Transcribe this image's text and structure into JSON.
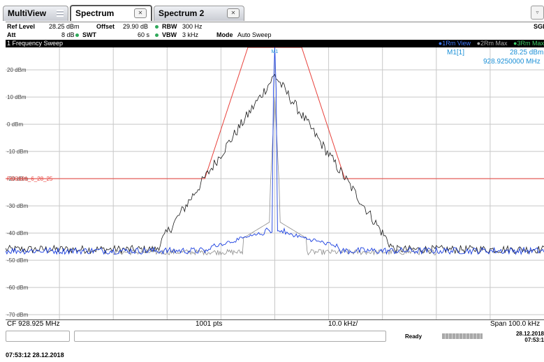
{
  "tabs": [
    {
      "label": "MultiView"
    },
    {
      "label": "Spectrum"
    },
    {
      "label": "Spectrum 2"
    }
  ],
  "sgl_label": "SGL",
  "settings": {
    "ref_level_label": "Ref Level",
    "ref_level_value": "28.25 dBm",
    "offset_label": "Offset",
    "offset_value": "29.90 dB",
    "rbw_label": "RBW",
    "rbw_value": "300 Hz",
    "att_label": "Att",
    "att_value": "8 dB",
    "swt_label": "SWT",
    "swt_value": "60 s",
    "vbw_label": "VBW",
    "vbw_value": "3 kHz",
    "mode_label": "Mode",
    "mode_value": "Auto Sweep"
  },
  "diagram": {
    "title": "1 Frequency Sweep",
    "traces": [
      "1Rm View",
      "2Rm Max",
      "3Rm Max"
    ],
    "trace_colors": [
      "#1a4fd6",
      "#7a7a7a",
      "#2fa85a"
    ]
  },
  "marker": {
    "label": "M1",
    "name": "M1[1]",
    "level": "28.25 dBm",
    "freq": "928.9250000 MHz"
  },
  "limit_line_label": "FCC101_6_28_25",
  "y_axis": {
    "labels": [
      "20 dBm",
      "10 dBm",
      "0 dBm",
      "-10 dBm",
      "-20 dBm",
      "-30 dBm",
      "-40 dBm",
      "-50 dBm",
      "-60 dBm",
      "-70 dBm"
    ],
    "values": [
      20,
      10,
      0,
      -10,
      -20,
      -30,
      -40,
      -50,
      -60,
      -70
    ],
    "top": 28.25,
    "bottom": -71.75
  },
  "footer": {
    "cf": "CF 928.925 MHz",
    "pts": "1001 pts",
    "div": "10.0 kHz/",
    "span": "Span 100.0 kHz"
  },
  "status": {
    "ready": "Ready",
    "date": "28.12.2018",
    "time": "07:53:1"
  },
  "timestamp": "07:53:12  28.12.2018",
  "colors": {
    "limit": "#e8413b",
    "trace_black": "#1a1a1a",
    "trace_blue": "#1a3fe0",
    "trace_gray": "#8c8c8c",
    "grid": "#c8c8c8",
    "marker": "#1a8fd6"
  },
  "chart_data": {
    "type": "line",
    "x_unit": "MHz",
    "x_center": 928.925,
    "x_span_khz": 100,
    "ylim": [
      -71.75,
      28.25
    ],
    "ylabel": "dBm",
    "limit_line": {
      "name": "FCC101_6_28_25",
      "points": [
        [
          -100,
          -20
        ],
        [
          -13,
          -20
        ],
        [
          -5,
          28.25
        ],
        [
          5,
          28.25
        ],
        [
          13,
          -20
        ],
        [
          100,
          -20
        ]
      ],
      "x_unit": "kHz offset"
    },
    "series": [
      {
        "name": "1Rm View",
        "peak_dbm": 28.25,
        "floor_dbm": -46
      },
      {
        "name": "2Rm Max",
        "peak_dbm": 18,
        "floor_dbm": -47
      }
    ]
  }
}
